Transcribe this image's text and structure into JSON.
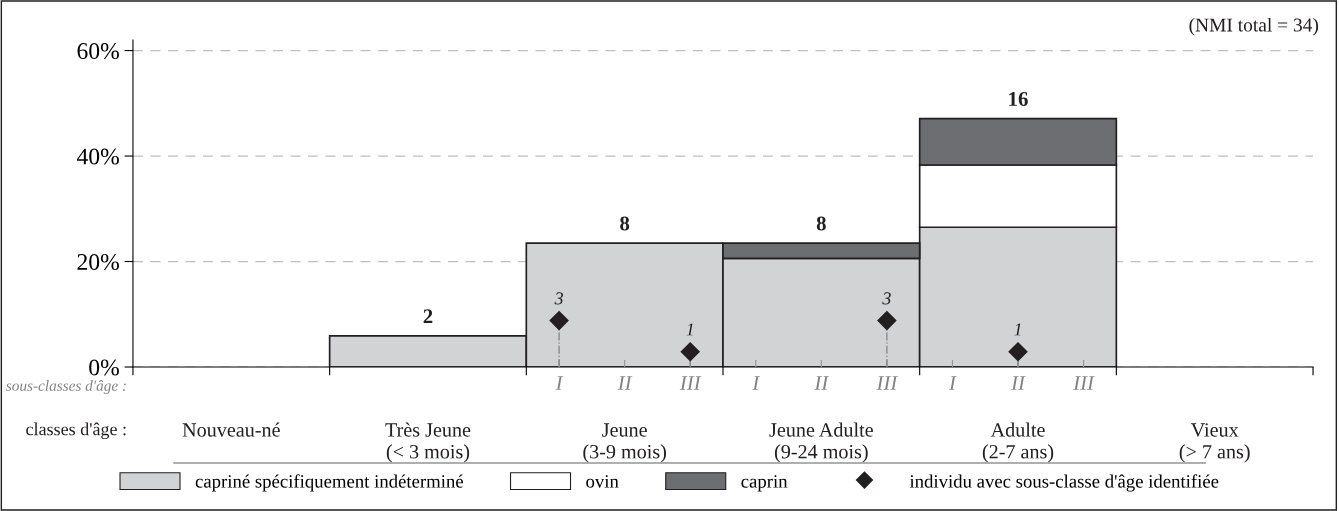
{
  "chart_data": [
    {
      "type": "bar",
      "stacked": true,
      "categories": [
        "Nouveau-né",
        "Très Jeune\n(< 3 mois)",
        "Jeune\n(3-9 mois)",
        "Jeune Adulte\n(9-24 mois)",
        "Adulte\n(2-7 ans)",
        "Vieux\n(> 7 ans)"
      ],
      "xlabel": "classes d'âge :",
      "series": [
        {
          "name": "capriné spécifiquement indéterminé",
          "color": "#d1d3d4",
          "values": [
            null,
            5.9,
            23.5,
            20.6,
            26.5,
            null
          ]
        },
        {
          "name": "ovin",
          "color": "#ffffff",
          "values": [
            null,
            null,
            null,
            null,
            11.8,
            null
          ]
        },
        {
          "name": "caprin",
          "color": "#6d6e71",
          "values": [
            null,
            null,
            null,
            2.9,
            8.8,
            null
          ]
        }
      ],
      "ylim": [
        0,
        62
      ],
      "yticks": [
        {
          "value": 0,
          "label": "0%"
        },
        {
          "value": 20,
          "label": "20%"
        },
        {
          "value": 40,
          "label": "40%"
        },
        {
          "value": 60,
          "label": "60%"
        }
      ],
      "grid": "y",
      "legend": "bottom",
      "annotations": [
        "(NMI total = 34)",
        {
          "text": "2",
          "x": "Très Jeune\n(< 3 mois)",
          "y": 5.9
        },
        {
          "text": "8",
          "x": "Jeune\n(3-9 mois)",
          "y": 23.5
        },
        {
          "text": "8",
          "x": "Jeune Adulte\n(9-24 mois)",
          "y": 23.5
        },
        {
          "text": "16",
          "x": "Adulte\n(2-7 ans)",
          "y": 47.1
        }
      ]
    },
    {
      "type": "scatter",
      "categories": [
        null,
        null,
        null,
        null,
        null,
        null,
        "I",
        "II",
        "III",
        "I",
        "II",
        "III",
        "I",
        "II",
        "III",
        null,
        null,
        null
      ],
      "xlabel": "sous-classes d'âge :",
      "series": [
        {
          "name": "individu avec sous-classe d'âge identifiée",
          "color": "#231f20",
          "values": [
            null,
            null,
            null,
            null,
            null,
            null,
            8.8,
            null,
            2.9,
            null,
            null,
            8.8,
            null,
            2.9,
            null,
            null,
            null,
            null
          ]
        }
      ],
      "marker": "diamond",
      "ylim": [
        0,
        62
      ],
      "tick_labels": "x",
      "legend": "bottom",
      "annotations": [
        "3",
        "1",
        "3",
        "1"
      ]
    }
  ]
}
